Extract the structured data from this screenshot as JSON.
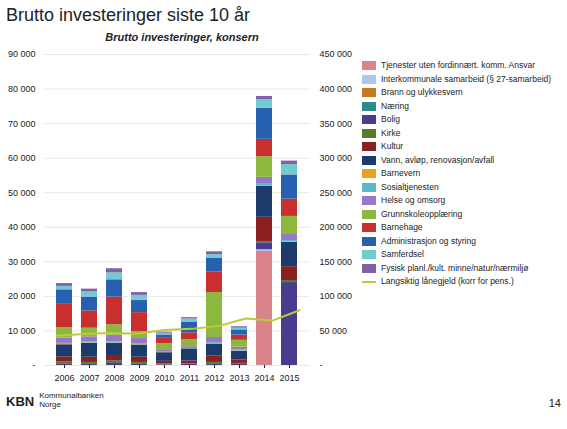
{
  "chart_data": {
    "type": "bar",
    "title": "Brutto investeringer siste 10 år",
    "subtitle": "Brutto investeringer, konsern",
    "annotations": [
      "KBN",
      "Kommunalbanken",
      "Norge",
      "14"
    ],
    "stacked": true,
    "grid": true,
    "legend": "right",
    "categories": [
      "2006",
      "2007",
      "2008",
      "2009",
      "2010",
      "2011",
      "2012",
      "2013",
      "2014",
      "2015"
    ],
    "series": [
      {
        "name": "Tjenester uten fordinnært. komm. Ansvar",
        "color": "#d9848a",
        "values": [
          0,
          0,
          0,
          0,
          0,
          0,
          0,
          0,
          33000,
          0
        ]
      },
      {
        "name": "Interkommunale samarbeid (§ 27-samarbeid)",
        "color": "#aec6e8",
        "values": [
          0,
          0,
          0,
          0,
          0,
          0,
          0,
          0,
          500,
          0
        ]
      },
      {
        "name": "Brann og ulykkesvern",
        "color": "#c87820",
        "values": [
          0,
          0,
          0,
          0,
          0,
          0,
          0,
          0,
          0,
          0
        ]
      },
      {
        "name": "Næring",
        "color": "#2e8b8b",
        "values": [
          0,
          0,
          0,
          0,
          0,
          0,
          0,
          0,
          0,
          0
        ]
      },
      {
        "name": "Bolig",
        "color": "#4a3c8c",
        "values": [
          500,
          500,
          800,
          500,
          200,
          300,
          500,
          300,
          2000,
          24000
        ]
      },
      {
        "name": "Kirke",
        "color": "#5a7a2a",
        "values": [
          500,
          400,
          600,
          400,
          200,
          200,
          400,
          300,
          400,
          600
        ]
      },
      {
        "name": "Kultur",
        "color": "#8b2020",
        "values": [
          1500,
          1500,
          1500,
          1500,
          800,
          800,
          1800,
          1000,
          7000,
          4000
        ]
      },
      {
        "name": "Vann, avløp, renovasjon/avfall",
        "color": "#1c3a6b",
        "values": [
          3500,
          4000,
          3500,
          3500,
          2500,
          3500,
          3500,
          2500,
          9000,
          7000
        ]
      },
      {
        "name": "Barnevern",
        "color": "#e8a020",
        "values": [
          100,
          100,
          100,
          100,
          50,
          50,
          100,
          100,
          150,
          150
        ]
      },
      {
        "name": "Sosialtjenesten",
        "color": "#5bb8c8",
        "values": [
          300,
          300,
          300,
          300,
          100,
          100,
          300,
          300,
          400,
          400
        ]
      },
      {
        "name": "Helse og omsorg",
        "color": "#9878c8",
        "values": [
          1500,
          1500,
          2000,
          1500,
          500,
          500,
          1500,
          800,
          2000,
          2000
        ]
      },
      {
        "name": "Grunnskoleopplæring",
        "color": "#8db840",
        "values": [
          3000,
          2500,
          3000,
          2000,
          2000,
          2000,
          13000,
          2000,
          6000,
          5000
        ]
      },
      {
        "name": "Barnehage",
        "color": "#c83030",
        "values": [
          7000,
          5000,
          8000,
          5500,
          1500,
          2000,
          6000,
          1500,
          5000,
          5000
        ]
      },
      {
        "name": "Administrasjon og styring",
        "color": "#2860b0",
        "values": [
          4000,
          4000,
          5000,
          3500,
          1000,
          3000,
          4000,
          1500,
          9000,
          7000
        ]
      },
      {
        "name": "Samferdsel",
        "color": "#70ccd0",
        "values": [
          1000,
          1500,
          2000,
          1500,
          500,
          1000,
          1000,
          500,
          2500,
          3000
        ]
      },
      {
        "name": "Fysisk planl./kult. minne/natur/nærmiljø",
        "color": "#8060a8",
        "values": [
          800,
          800,
          1200,
          800,
          300,
          400,
          800,
          400,
          900,
          1000
        ]
      },
      {
        "name": "Langsiktig lånegjeld (korr for pens.)",
        "type": "line",
        "axis": "y2",
        "color": "#b8cc38",
        "values": [
          43000,
          45500,
          47000,
          46000,
          51500,
          53000,
          57000,
          68000,
          65000,
          80000
        ]
      }
    ],
    "ylim": [
      0,
      90000
    ],
    "yticks": [
      {
        "value": 0,
        "label": "-"
      },
      {
        "value": 10000,
        "label": "10 000"
      },
      {
        "value": 20000,
        "label": "20 000"
      },
      {
        "value": 30000,
        "label": "30 000"
      },
      {
        "value": 40000,
        "label": "40 000"
      },
      {
        "value": 50000,
        "label": "50 000"
      },
      {
        "value": 60000,
        "label": "60 000"
      },
      {
        "value": 70000,
        "label": "70 000"
      },
      {
        "value": 80000,
        "label": "80 000"
      },
      {
        "value": 90000,
        "label": "90 000"
      }
    ],
    "y2lim": [
      0,
      450000
    ],
    "y2ticks": [
      {
        "value": 0,
        "label": "-"
      },
      {
        "value": 50000,
        "label": "50 000"
      },
      {
        "value": 100000,
        "label": "100 000"
      },
      {
        "value": 150000,
        "label": "150 000"
      },
      {
        "value": 200000,
        "label": "200 000"
      },
      {
        "value": 250000,
        "label": "250 000"
      },
      {
        "value": 300000,
        "label": "300 000"
      },
      {
        "value": 350000,
        "label": "350 000"
      },
      {
        "value": 400000,
        "label": "400 000"
      },
      {
        "value": 450000,
        "label": "450 000"
      }
    ]
  }
}
